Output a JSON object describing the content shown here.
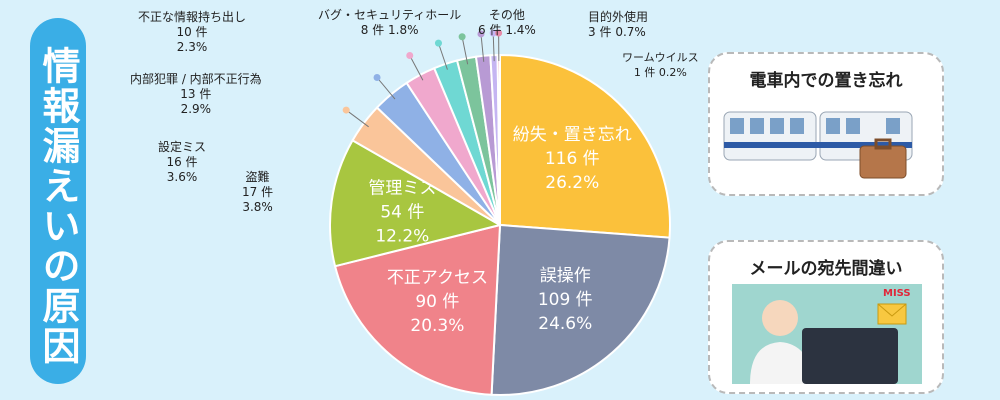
{
  "title": "情報漏えいの原因",
  "chart_data": {
    "type": "pie",
    "unit": "件",
    "slices": [
      {
        "label": "紛失・置き忘れ",
        "value": 116,
        "percent": "26.2%",
        "color": "#fbc13b"
      },
      {
        "label": "誤操作",
        "value": 109,
        "percent": "24.6%",
        "color": "#7e8aa6"
      },
      {
        "label": "不正アクセス",
        "value": 90,
        "percent": "20.3%",
        "color": "#f0838a"
      },
      {
        "label": "管理ミス",
        "value": 54,
        "percent": "12.2%",
        "color": "#a8c640"
      },
      {
        "label": "盗難",
        "value": 17,
        "percent": "3.8%",
        "color": "#fac59a"
      },
      {
        "label": "設定ミス",
        "value": 16,
        "percent": "3.6%",
        "color": "#8fb1e6"
      },
      {
        "label": "内部犯罪 / 内部不正行為",
        "value": 13,
        "percent": "2.9%",
        "color": "#f0a8cd"
      },
      {
        "label": "不正な情報持ち出し",
        "value": 10,
        "percent": "2.3%",
        "color": "#6fd8d3"
      },
      {
        "label": "バグ・セキュリティホール",
        "value": 8,
        "percent": "1.8%",
        "color": "#7cc49c"
      },
      {
        "label": "その他",
        "value": 6,
        "percent": "1.4%",
        "color": "#b89ad4"
      },
      {
        "label": "目的外使用",
        "value": 3,
        "percent": "0.7%",
        "color": "#c5b5f2"
      },
      {
        "label": "ワームウイルス",
        "value": 1,
        "percent": "0.2%",
        "color": "#e88aa8"
      }
    ]
  },
  "bubbles": {
    "train_title": "電車内での置き忘れ",
    "mail_title": "メールの宛先間違い",
    "miss_tag": "MISS"
  }
}
